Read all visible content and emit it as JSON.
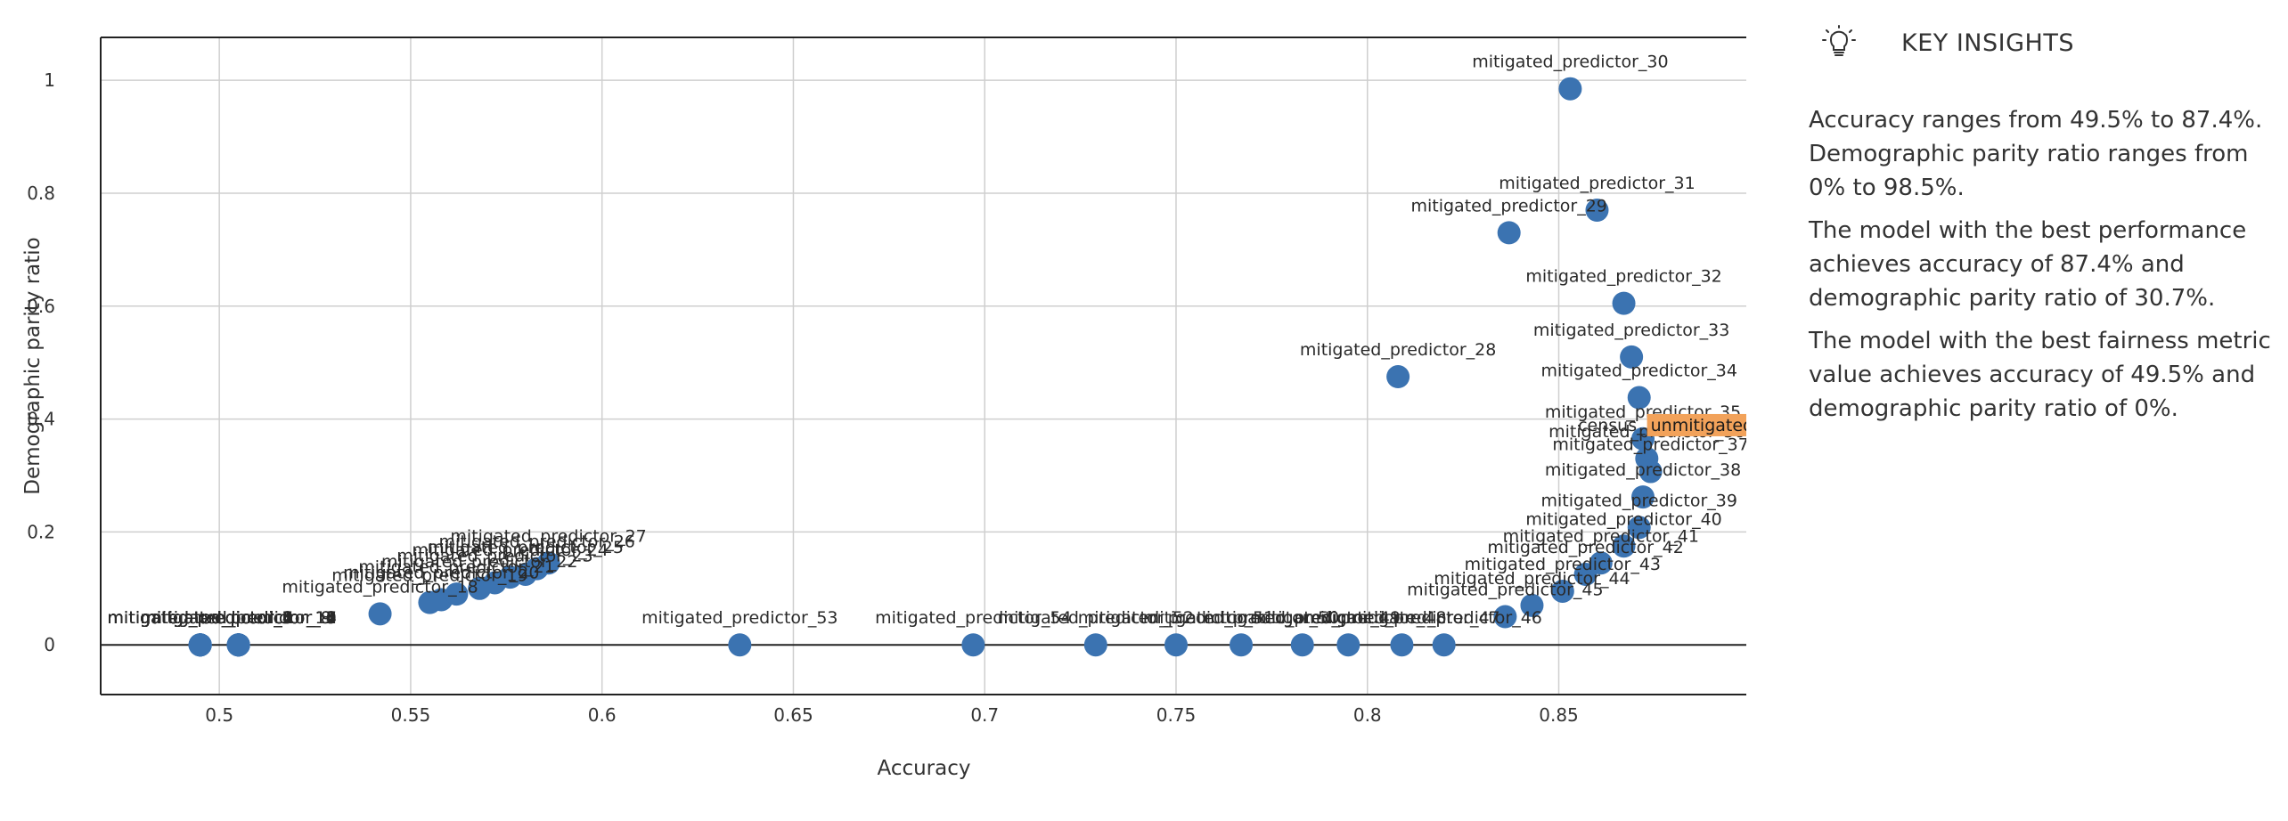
{
  "colors": {
    "point": "#3b73b1",
    "highlight": "#f2a25a",
    "grid": "#cfcfcf",
    "axis": "#222222",
    "text": "#333333"
  },
  "insights": {
    "icon": "lightbulb-icon",
    "title": "KEY INSIGHTS",
    "items": [
      "Accuracy ranges from 49.5% to 87.4%. Demographic parity ratio ranges from 0% to 98.5%.",
      "The model with the best performance achieves accuracy of 87.4% and demographic parity ratio of 30.7%.",
      "The model with the best fairness metric value achieves accuracy of 49.5% and demographic parity ratio of 0%."
    ]
  },
  "chart_data": {
    "type": "scatter",
    "xlabel": "Accuracy",
    "ylabel": "Demographic parity ratio",
    "xlim": [
      0.469,
      0.899
    ],
    "ylim": [
      -0.088,
      1.076
    ],
    "xticks": [
      0.5,
      0.55,
      0.6,
      0.65,
      0.7,
      0.75,
      0.8,
      0.85
    ],
    "xtick_labels": [
      "0.5",
      "0.55",
      "0.6",
      "0.65",
      "0.7",
      "0.75",
      "0.8",
      "0.85"
    ],
    "yticks": [
      0,
      0.2,
      0.4,
      0.6,
      0.8,
      1
    ],
    "ytick_labels": [
      "0",
      "0.2",
      "0.4",
      "0.6",
      "0.8",
      "1"
    ],
    "grid": true,
    "highlighted": "census_unmitigated",
    "points": [
      {
        "label": "mitigated_predictor_0",
        "x": 0.495,
        "y": 0
      },
      {
        "label": "mitigated_predictor_1",
        "x": 0.495,
        "y": 0
      },
      {
        "label": "mitigated_predictor_2",
        "x": 0.495,
        "y": 0
      },
      {
        "label": "mitigated_predictor_3",
        "x": 0.495,
        "y": 0
      },
      {
        "label": "mitigated_predictor_4",
        "x": 0.495,
        "y": 0
      },
      {
        "label": "mitigated_predictor_5",
        "x": 0.495,
        "y": 0
      },
      {
        "label": "mitigated_predictor_6",
        "x": 0.495,
        "y": 0
      },
      {
        "label": "mitigated_predictor_7",
        "x": 0.495,
        "y": 0
      },
      {
        "label": "mitigated_predictor_8",
        "x": 0.505,
        "y": 0
      },
      {
        "label": "mitigated_predictor_9",
        "x": 0.505,
        "y": 0
      },
      {
        "label": "mitigated_predictor_10",
        "x": 0.505,
        "y": 0
      },
      {
        "label": "mitigated_predictor_11",
        "x": 0.505,
        "y": 0
      },
      {
        "label": "mitigated_predictor_12",
        "x": 0.505,
        "y": 0
      },
      {
        "label": "mitigated_predictor_13",
        "x": 0.505,
        "y": 0
      },
      {
        "label": "mitigated_predictor_14",
        "x": 0.505,
        "y": 0
      },
      {
        "label": "mitigated_predictor_15",
        "x": 0.505,
        "y": 0
      },
      {
        "label": "mitigated_predictor_16",
        "x": 0.505,
        "y": 0
      },
      {
        "label": "mitigated_predictor_17",
        "x": 0.505,
        "y": 0
      },
      {
        "label": "mitigated_predictor_18",
        "x": 0.542,
        "y": 0.055
      },
      {
        "label": "mitigated_predictor_19",
        "x": 0.555,
        "y": 0.075
      },
      {
        "label": "mitigated_predictor_20",
        "x": 0.558,
        "y": 0.08
      },
      {
        "label": "mitigated_predictor_21",
        "x": 0.562,
        "y": 0.09
      },
      {
        "label": "mitigated_predictor_22",
        "x": 0.568,
        "y": 0.1
      },
      {
        "label": "mitigated_predictor_23",
        "x": 0.572,
        "y": 0.11
      },
      {
        "label": "mitigated_predictor_24",
        "x": 0.576,
        "y": 0.12
      },
      {
        "label": "mitigated_predictor_25",
        "x": 0.58,
        "y": 0.125
      },
      {
        "label": "mitigated_predictor_26",
        "x": 0.583,
        "y": 0.135
      },
      {
        "label": "mitigated_predictor_27",
        "x": 0.586,
        "y": 0.145
      },
      {
        "label": "mitigated_predictor_28",
        "x": 0.808,
        "y": 0.475
      },
      {
        "label": "mitigated_predictor_29",
        "x": 0.837,
        "y": 0.73
      },
      {
        "label": "mitigated_predictor_30",
        "x": 0.853,
        "y": 0.985
      },
      {
        "label": "mitigated_predictor_31",
        "x": 0.86,
        "y": 0.77
      },
      {
        "label": "mitigated_predictor_32",
        "x": 0.867,
        "y": 0.605
      },
      {
        "label": "mitigated_predictor_33",
        "x": 0.869,
        "y": 0.51
      },
      {
        "label": "mitigated_predictor_34",
        "x": 0.871,
        "y": 0.438
      },
      {
        "label": "mitigated_predictor_35",
        "x": 0.872,
        "y": 0.365
      },
      {
        "label": "census_unmitigated",
        "x": 0.874,
        "y": 0.36
      },
      {
        "label": "mitigated_predictor_36",
        "x": 0.873,
        "y": 0.33
      },
      {
        "label": "mitigated_predictor_37",
        "x": 0.874,
        "y": 0.307
      },
      {
        "label": "mitigated_predictor_38",
        "x": 0.872,
        "y": 0.262
      },
      {
        "label": "mitigated_predictor_39",
        "x": 0.871,
        "y": 0.208
      },
      {
        "label": "mitigated_predictor_40",
        "x": 0.867,
        "y": 0.175
      },
      {
        "label": "mitigated_predictor_41",
        "x": 0.861,
        "y": 0.145
      },
      {
        "label": "mitigated_predictor_42",
        "x": 0.857,
        "y": 0.125
      },
      {
        "label": "mitigated_predictor_43",
        "x": 0.851,
        "y": 0.095
      },
      {
        "label": "mitigated_predictor_44",
        "x": 0.843,
        "y": 0.07
      },
      {
        "label": "mitigated_predictor_45",
        "x": 0.836,
        "y": 0.05
      },
      {
        "label": "mitigated_predictor_46",
        "x": 0.82,
        "y": 0
      },
      {
        "label": "mitigated_predictor_47",
        "x": 0.809,
        "y": 0
      },
      {
        "label": "mitigated_predictor_48",
        "x": 0.795,
        "y": 0
      },
      {
        "label": "mitigated_predictor_49",
        "x": 0.783,
        "y": 0
      },
      {
        "label": "mitigated_predictor_50",
        "x": 0.767,
        "y": 0
      },
      {
        "label": "mitigated_predictor_51",
        "x": 0.75,
        "y": 0
      },
      {
        "label": "mitigated_predictor_52",
        "x": 0.729,
        "y": 0
      },
      {
        "label": "mitigated_predictor_54",
        "x": 0.697,
        "y": 0
      },
      {
        "label": "mitigated_predictor_53",
        "x": 0.636,
        "y": 0
      }
    ]
  }
}
